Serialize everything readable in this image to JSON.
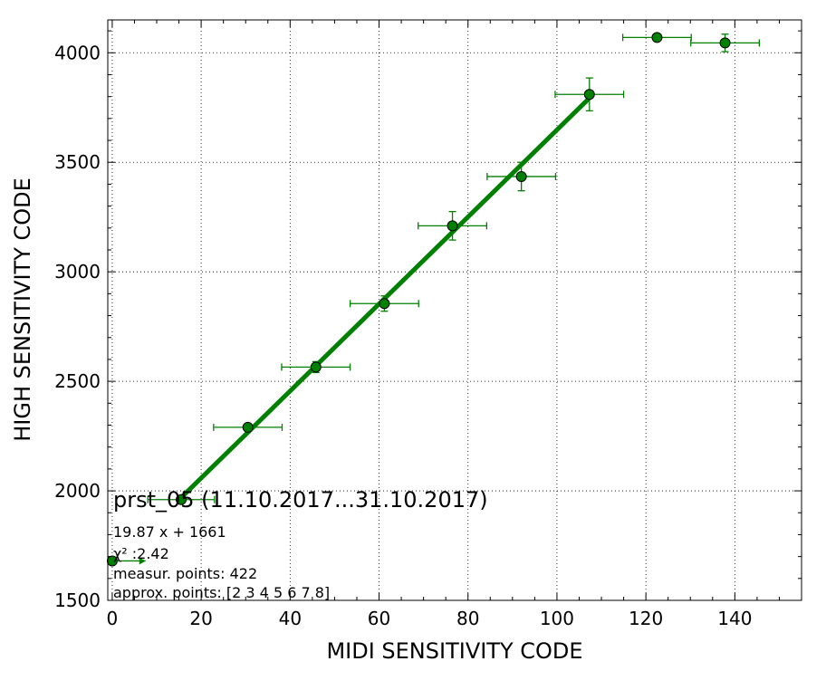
{
  "chart_data": {
    "type": "scatter",
    "title": "prst_05 (11.10.2017...31.10.2017)",
    "xlabel": "MIDI SENSITIVITY CODE",
    "ylabel": "HIGH SENSITIVITY CODE",
    "xlim": [
      -1,
      155
    ],
    "ylim": [
      1500,
      4150
    ],
    "xticks": [
      0,
      20,
      40,
      60,
      80,
      100,
      120,
      140
    ],
    "yticks": [
      1500,
      2000,
      2500,
      3000,
      3500,
      4000
    ],
    "grid": true,
    "colors": {
      "series": "#008000",
      "marker_edge": "#000000"
    },
    "series": [
      {
        "points": [
          {
            "x": 0,
            "y": 1680,
            "xerr_lo": 0,
            "xerr_hi": 7.5,
            "yerr": 0
          },
          {
            "x": 15.5,
            "y": 1960,
            "xerr": 7.5,
            "yerr": 15
          },
          {
            "x": 30.5,
            "y": 2290,
            "xerr": 7.7,
            "yerr": 10
          },
          {
            "x": 45.8,
            "y": 2565,
            "xerr": 7.7,
            "yerr": 25
          },
          {
            "x": 61.2,
            "y": 2855,
            "xerr": 7.7,
            "yerr": 35
          },
          {
            "x": 76.5,
            "y": 3210,
            "xerr": 7.7,
            "yerr": 65
          },
          {
            "x": 92,
            "y": 3435,
            "xerr": 7.7,
            "yerr": 65
          },
          {
            "x": 107.3,
            "y": 3810,
            "xerr": 7.7,
            "yerr": 75
          },
          {
            "x": 122.5,
            "y": 4070,
            "xerr": 7.7,
            "yerr": 0
          },
          {
            "x": 137.8,
            "y": 4045,
            "xerr": 7.7,
            "yerr": 40
          }
        ]
      }
    ],
    "fit": {
      "slope": 19.87,
      "intercept": 1661,
      "x_range": [
        15,
        107.3
      ]
    },
    "annotations": [
      "19.87 x + 1661",
      "χ² :2.42",
      "measur. points: 422",
      "approx. points: [2 3 4 5 6 7 8]"
    ]
  }
}
